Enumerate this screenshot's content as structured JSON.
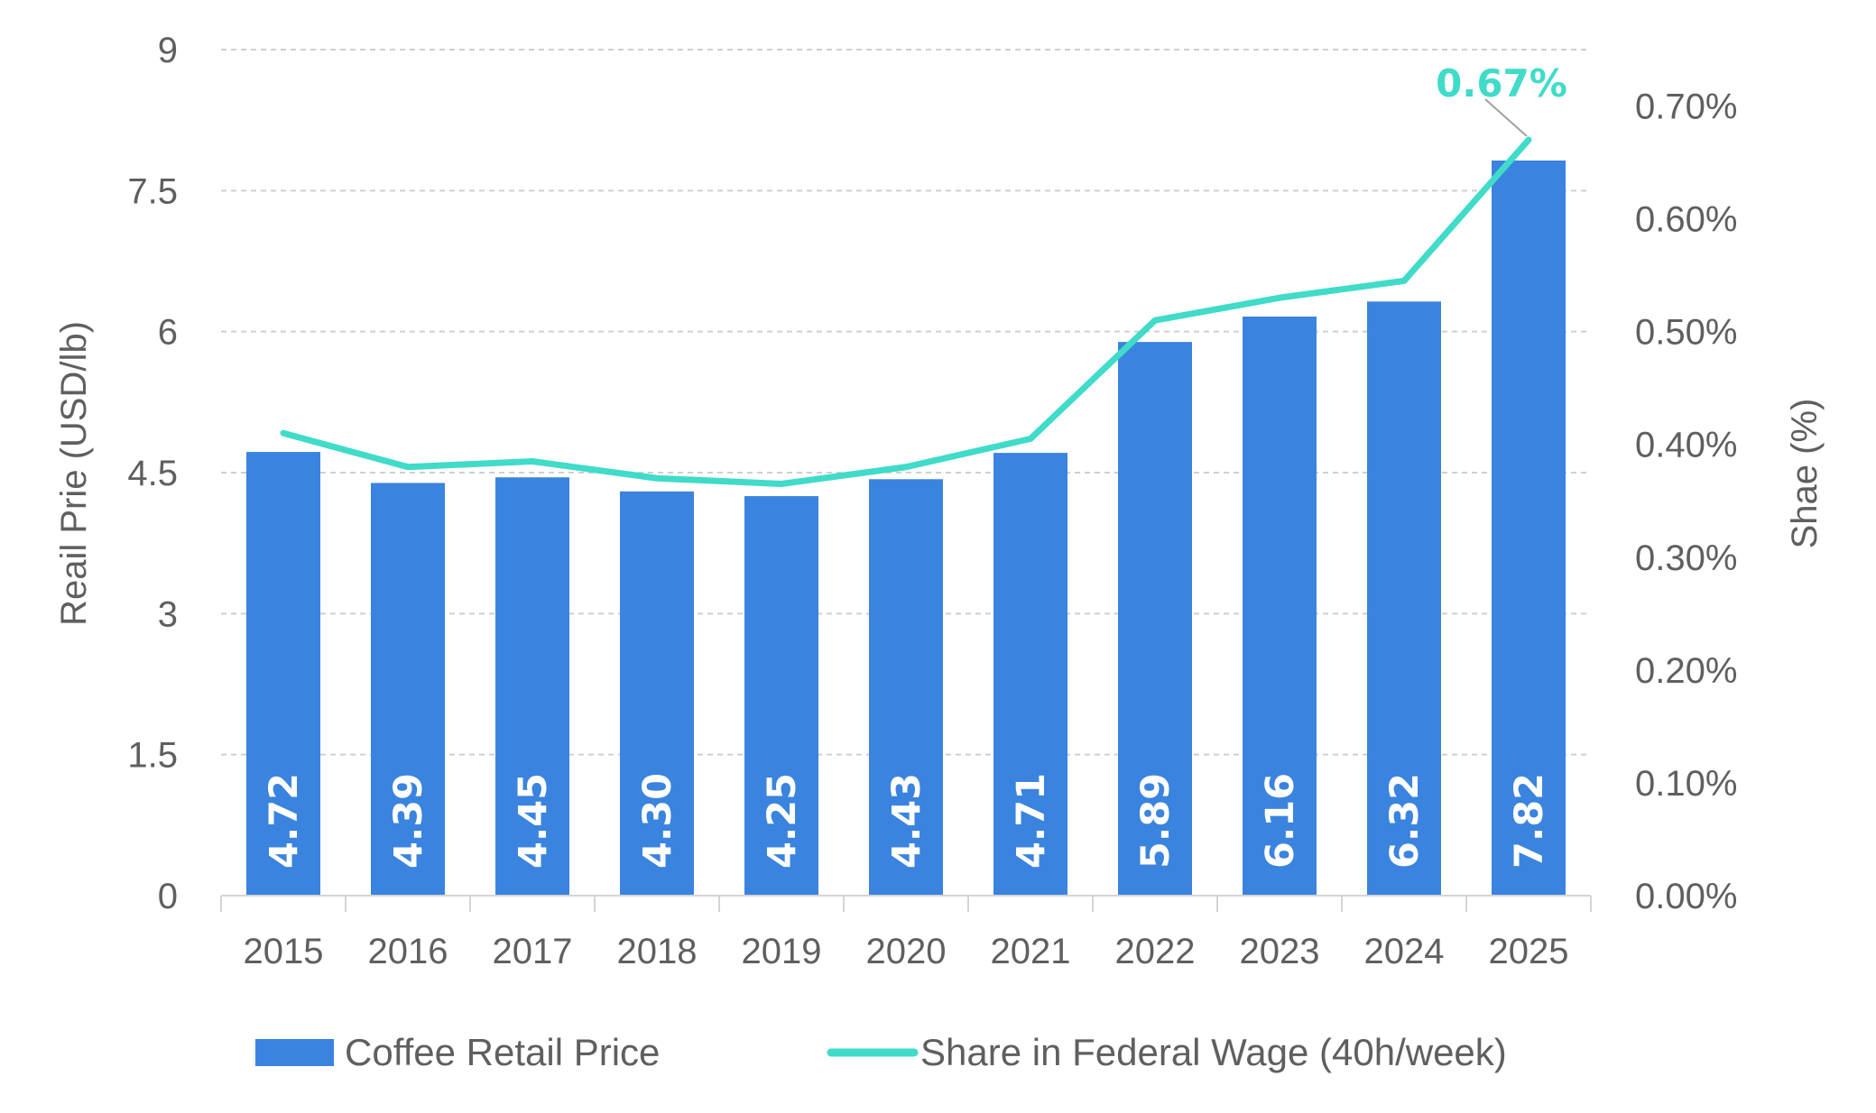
{
  "chart_data": {
    "type": "bar",
    "categories": [
      "2015",
      "2016",
      "2017",
      "2018",
      "2019",
      "2020",
      "2021",
      "2022",
      "2023",
      "2024",
      "2025"
    ],
    "series": [
      {
        "name": "Coffee Retail Price",
        "type": "bar",
        "axis": "left",
        "values": [
          4.72,
          4.39,
          4.45,
          4.3,
          4.25,
          4.43,
          4.71,
          5.89,
          6.16,
          6.32,
          7.82
        ],
        "value_labels": [
          "4.72",
          "4.39",
          "4.45",
          "4.30",
          "4.25",
          "4.43",
          "4.71",
          "5.89",
          "6.16",
          "6.32",
          "7.82"
        ]
      },
      {
        "name": "Share in Federal Wage (40h/week)",
        "type": "line",
        "axis": "right",
        "values": [
          0.41,
          0.38,
          0.385,
          0.37,
          0.365,
          0.38,
          0.405,
          0.51,
          0.53,
          0.545,
          0.67
        ]
      }
    ],
    "y_left": {
      "label": "Reail Prie (USD/lb)",
      "lim": [
        0,
        9
      ],
      "ticks": [
        0,
        1.5,
        3,
        4.5,
        6,
        7.5,
        9
      ],
      "tick_labels": [
        "0",
        "1.5",
        "3",
        "4.5",
        "6",
        "7.5",
        "9"
      ]
    },
    "y_right": {
      "label": "Shae (%)",
      "lim": [
        0,
        0.75
      ],
      "ticks": [
        0,
        0.1,
        0.2,
        0.3,
        0.4,
        0.5,
        0.6,
        0.7
      ],
      "tick_labels": [
        "0.00%",
        "0.10%",
        "0.20%",
        "0.30%",
        "0.40%",
        "0.50%",
        "0.60%",
        "0.70%"
      ]
    },
    "annotation": {
      "text": "0.67%",
      "category": "2025",
      "value": 0.67
    },
    "grid": true,
    "legend_position": "bottom"
  },
  "colors": {
    "bar": "#3a84df",
    "line": "#40dbc9",
    "grid": "#cfcfcf",
    "axis_text": "#5f5f5f",
    "callout_leader": "#a0a0a0"
  }
}
